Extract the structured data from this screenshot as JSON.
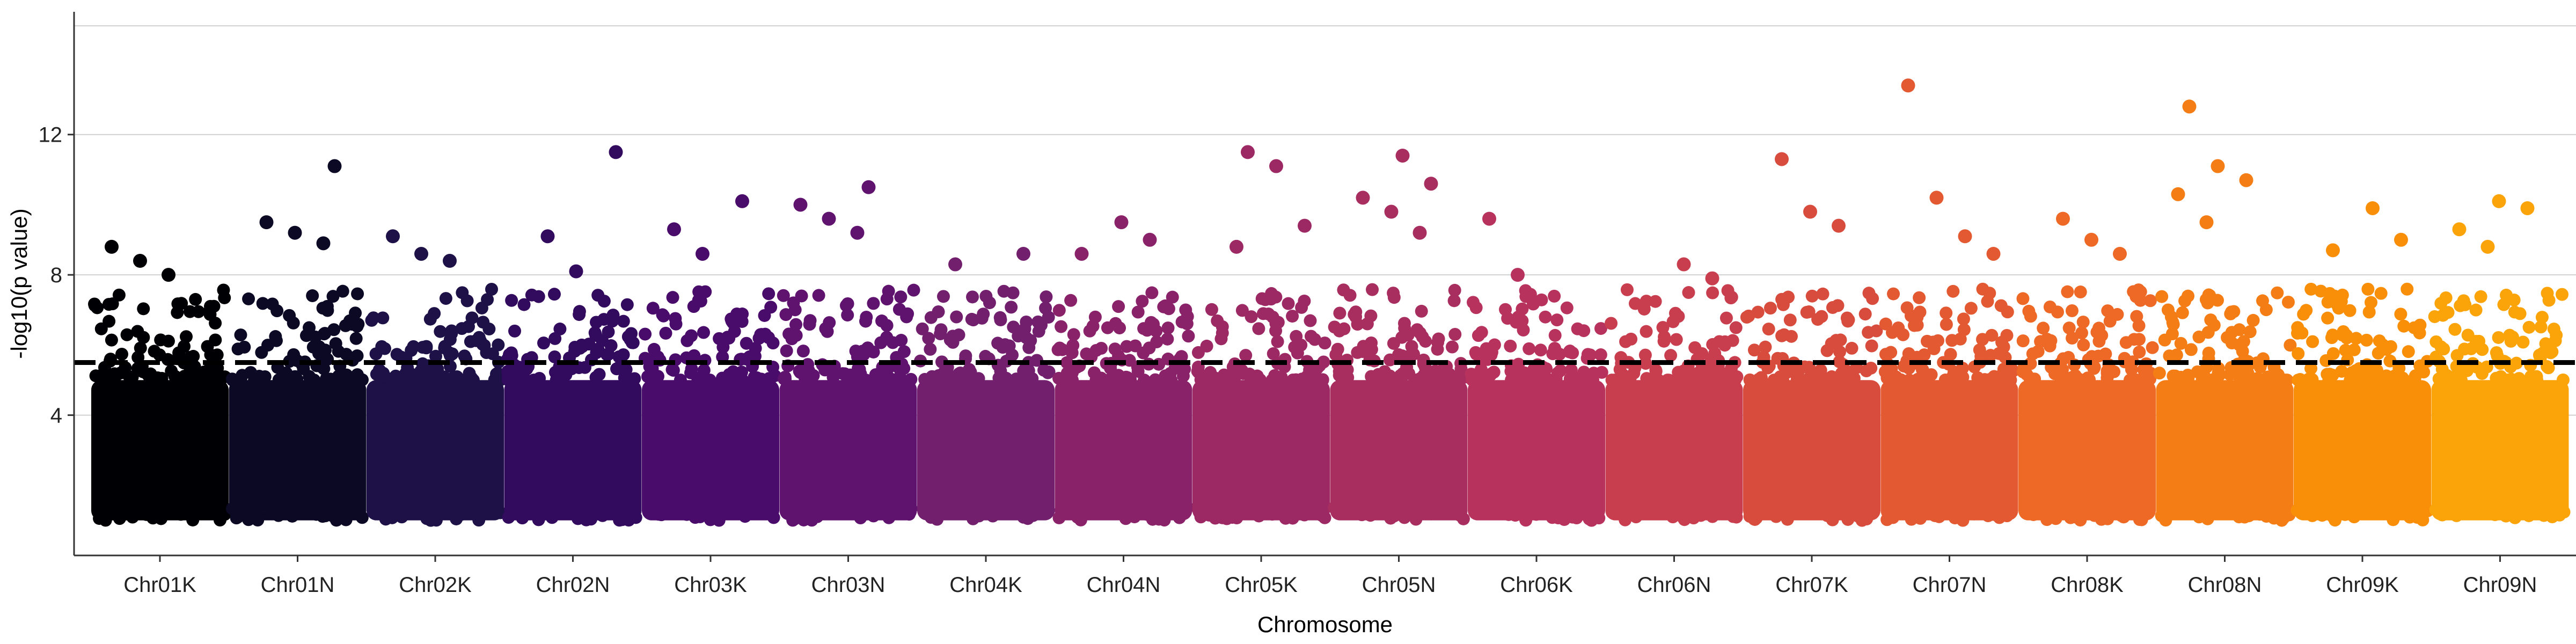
{
  "chart_data": {
    "type": "scatter",
    "title": "",
    "xlabel": "Chromosome",
    "ylabel": "-log10(p value)",
    "ylim": [
      0,
      15.5
    ],
    "yticks": [
      4,
      8,
      12
    ],
    "grid": "horizontal",
    "threshold": 5.5,
    "categories": [
      "Chr01K",
      "Chr01N",
      "Chr02K",
      "Chr02N",
      "Chr03K",
      "Chr03N",
      "Chr04K",
      "Chr04N",
      "Chr05K",
      "Chr05N",
      "Chr06K",
      "Chr06N",
      "Chr07K",
      "Chr07N",
      "Chr08K",
      "Chr08N",
      "Chr09K",
      "Chr09N"
    ],
    "colors": [
      "#000004",
      "#0b0924",
      "#1d1147",
      "#320a5e",
      "#4a0c6b",
      "#5f136e",
      "#721f6e",
      "#8a226a",
      "#9c2964",
      "#a82e5f",
      "#b8325e",
      "#c83e4f",
      "#d84c3e",
      "#e35932",
      "#ed6925",
      "#f57d15",
      "#f98e09",
      "#fba40a"
    ],
    "points_top": [
      {
        "chr": "Chr01K",
        "y": 8.8
      },
      {
        "chr": "Chr01K",
        "y": 8.4
      },
      {
        "chr": "Chr01K",
        "y": 8.0
      },
      {
        "chr": "Chr01N",
        "y": 11.1
      },
      {
        "chr": "Chr01N",
        "y": 9.5
      },
      {
        "chr": "Chr01N",
        "y": 9.2
      },
      {
        "chr": "Chr01N",
        "y": 8.9
      },
      {
        "chr": "Chr02K",
        "y": 9.1
      },
      {
        "chr": "Chr02K",
        "y": 8.6
      },
      {
        "chr": "Chr02K",
        "y": 8.4
      },
      {
        "chr": "Chr02N",
        "y": 11.5
      },
      {
        "chr": "Chr02N",
        "y": 9.1
      },
      {
        "chr": "Chr02N",
        "y": 8.1
      },
      {
        "chr": "Chr03K",
        "y": 10.1
      },
      {
        "chr": "Chr03K",
        "y": 9.3
      },
      {
        "chr": "Chr03K",
        "y": 8.6
      },
      {
        "chr": "Chr03N",
        "y": 10.5
      },
      {
        "chr": "Chr03N",
        "y": 10.0
      },
      {
        "chr": "Chr03N",
        "y": 9.6
      },
      {
        "chr": "Chr03N",
        "y": 9.2
      },
      {
        "chr": "Chr04K",
        "y": 8.6
      },
      {
        "chr": "Chr04K",
        "y": 8.3
      },
      {
        "chr": "Chr04N",
        "y": 9.5
      },
      {
        "chr": "Chr04N",
        "y": 9.0
      },
      {
        "chr": "Chr04N",
        "y": 8.6
      },
      {
        "chr": "Chr05K",
        "y": 11.5
      },
      {
        "chr": "Chr05K",
        "y": 11.1
      },
      {
        "chr": "Chr05K",
        "y": 9.4
      },
      {
        "chr": "Chr05K",
        "y": 8.8
      },
      {
        "chr": "Chr05N",
        "y": 11.4
      },
      {
        "chr": "Chr05N",
        "y": 10.6
      },
      {
        "chr": "Chr05N",
        "y": 10.2
      },
      {
        "chr": "Chr05N",
        "y": 9.8
      },
      {
        "chr": "Chr05N",
        "y": 9.2
      },
      {
        "chr": "Chr06K",
        "y": 9.6
      },
      {
        "chr": "Chr06K",
        "y": 8.0
      },
      {
        "chr": "Chr06N",
        "y": 8.3
      },
      {
        "chr": "Chr06N",
        "y": 7.9
      },
      {
        "chr": "Chr07K",
        "y": 11.3
      },
      {
        "chr": "Chr07K",
        "y": 9.8
      },
      {
        "chr": "Chr07K",
        "y": 9.4
      },
      {
        "chr": "Chr07N",
        "y": 13.4
      },
      {
        "chr": "Chr07N",
        "y": 10.2
      },
      {
        "chr": "Chr07N",
        "y": 9.1
      },
      {
        "chr": "Chr07N",
        "y": 8.6
      },
      {
        "chr": "Chr08K",
        "y": 9.6
      },
      {
        "chr": "Chr08K",
        "y": 9.0
      },
      {
        "chr": "Chr08K",
        "y": 8.6
      },
      {
        "chr": "Chr08N",
        "y": 12.8
      },
      {
        "chr": "Chr08N",
        "y": 11.1
      },
      {
        "chr": "Chr08N",
        "y": 10.7
      },
      {
        "chr": "Chr08N",
        "y": 10.3
      },
      {
        "chr": "Chr08N",
        "y": 9.5
      },
      {
        "chr": "Chr09K",
        "y": 9.9
      },
      {
        "chr": "Chr09K",
        "y": 9.0
      },
      {
        "chr": "Chr09K",
        "y": 8.7
      },
      {
        "chr": "Chr09N",
        "y": 10.1
      },
      {
        "chr": "Chr09N",
        "y": 9.9
      },
      {
        "chr": "Chr09N",
        "y": 9.3
      },
      {
        "chr": "Chr09N",
        "y": 8.8
      }
    ]
  }
}
